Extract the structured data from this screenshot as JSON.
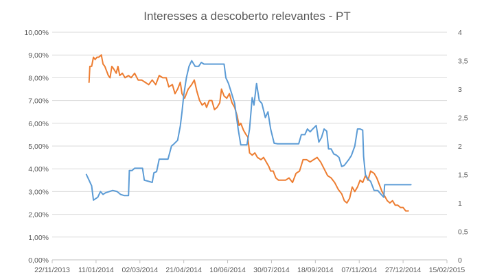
{
  "chart_data": {
    "type": "line",
    "title": "Interesses a descoberto relevantes - PT",
    "grid": true,
    "legend": "none",
    "x_axis": {
      "type": "date",
      "range": [
        "2013-11-22",
        "2015-02-15"
      ],
      "tick_labels": [
        "22/11/2013",
        "11/01/2014",
        "02/03/2014",
        "21/04/2014",
        "10/06/2014",
        "30/07/2014",
        "18/09/2014",
        "07/11/2014",
        "27/12/2014",
        "15/02/2015"
      ]
    },
    "y_axis_left": {
      "range": [
        0,
        10
      ],
      "tick_labels": [
        "0,00%",
        "1,00%",
        "2,00%",
        "3,00%",
        "4,00%",
        "5,00%",
        "6,00%",
        "7,00%",
        "8,00%",
        "9,00%",
        "10,00%"
      ]
    },
    "y_axis_right": {
      "range": [
        0,
        4
      ],
      "tick_labels": [
        "0",
        "0,5",
        "1",
        "1,5",
        "2",
        "2,5",
        "3",
        "3,5",
        "4"
      ]
    },
    "series": [
      {
        "axis": "left",
        "color": "#ed7d31",
        "points": [
          [
            "2014-01-03",
            7.8
          ],
          [
            "2014-01-04",
            8.5
          ],
          [
            "2014-01-06",
            8.5
          ],
          [
            "2014-01-08",
            8.9
          ],
          [
            "2014-01-10",
            8.8
          ],
          [
            "2014-01-12",
            8.9
          ],
          [
            "2014-01-14",
            8.9
          ],
          [
            "2014-01-17",
            9.0
          ],
          [
            "2014-01-19",
            8.6
          ],
          [
            "2014-01-21",
            8.5
          ],
          [
            "2014-01-23",
            8.3
          ],
          [
            "2014-01-25",
            8.1
          ],
          [
            "2014-01-27",
            8.0
          ],
          [
            "2014-01-29",
            8.5
          ],
          [
            "2014-01-31",
            8.4
          ],
          [
            "2014-02-03",
            8.2
          ],
          [
            "2014-02-05",
            8.5
          ],
          [
            "2014-02-07",
            8.1
          ],
          [
            "2014-02-10",
            8.2
          ],
          [
            "2014-02-13",
            8.0
          ],
          [
            "2014-02-17",
            8.1
          ],
          [
            "2014-02-20",
            8.0
          ],
          [
            "2014-02-24",
            8.2
          ],
          [
            "2014-02-28",
            7.9
          ],
          [
            "2014-03-04",
            7.9
          ],
          [
            "2014-03-08",
            7.8
          ],
          [
            "2014-03-12",
            7.7
          ],
          [
            "2014-03-16",
            7.9
          ],
          [
            "2014-03-20",
            7.7
          ],
          [
            "2014-03-24",
            8.1
          ],
          [
            "2014-03-28",
            8.0
          ],
          [
            "2014-04-01",
            8.0
          ],
          [
            "2014-04-04",
            7.6
          ],
          [
            "2014-04-08",
            7.7
          ],
          [
            "2014-04-11",
            7.3
          ],
          [
            "2014-04-14",
            7.5
          ],
          [
            "2014-04-17",
            7.8
          ],
          [
            "2014-04-19",
            7.3
          ],
          [
            "2014-04-22",
            7.1
          ],
          [
            "2014-04-26",
            7.5
          ],
          [
            "2014-04-30",
            7.7
          ],
          [
            "2014-05-03",
            7.9
          ],
          [
            "2014-05-06",
            7.4
          ],
          [
            "2014-05-09",
            7.0
          ],
          [
            "2014-05-12",
            6.8
          ],
          [
            "2014-05-15",
            6.9
          ],
          [
            "2014-05-17",
            6.7
          ],
          [
            "2014-05-20",
            7.0
          ],
          [
            "2014-05-23",
            7.0
          ],
          [
            "2014-05-26",
            6.6
          ],
          [
            "2014-05-29",
            6.7
          ],
          [
            "2014-06-01",
            6.9
          ],
          [
            "2014-06-03",
            7.5
          ],
          [
            "2014-06-06",
            7.2
          ],
          [
            "2014-06-09",
            7.1
          ],
          [
            "2014-06-12",
            7.3
          ],
          [
            "2014-06-15",
            6.9
          ],
          [
            "2014-06-18",
            6.7
          ],
          [
            "2014-06-21",
            6.3
          ],
          [
            "2014-06-23",
            5.9
          ],
          [
            "2014-06-25",
            6.0
          ],
          [
            "2014-06-28",
            5.7
          ],
          [
            "2014-07-01",
            5.5
          ],
          [
            "2014-07-03",
            5.4
          ],
          [
            "2014-07-05",
            4.7
          ],
          [
            "2014-07-08",
            4.6
          ],
          [
            "2014-07-11",
            4.7
          ],
          [
            "2014-07-14",
            4.5
          ],
          [
            "2014-07-18",
            4.4
          ],
          [
            "2014-07-21",
            4.5
          ],
          [
            "2014-07-24",
            4.3
          ],
          [
            "2014-07-27",
            4.1
          ],
          [
            "2014-07-29",
            3.9
          ],
          [
            "2014-08-01",
            3.9
          ],
          [
            "2014-08-04",
            3.6
          ],
          [
            "2014-08-07",
            3.5
          ],
          [
            "2014-08-11",
            3.5
          ],
          [
            "2014-08-15",
            3.5
          ],
          [
            "2014-08-19",
            3.6
          ],
          [
            "2014-08-23",
            3.4
          ],
          [
            "2014-08-27",
            3.8
          ],
          [
            "2014-08-31",
            3.9
          ],
          [
            "2014-09-04",
            4.4
          ],
          [
            "2014-09-08",
            4.4
          ],
          [
            "2014-09-12",
            4.3
          ],
          [
            "2014-09-16",
            4.4
          ],
          [
            "2014-09-20",
            4.5
          ],
          [
            "2014-09-24",
            4.3
          ],
          [
            "2014-09-28",
            4.0
          ],
          [
            "2014-10-02",
            3.7
          ],
          [
            "2014-10-06",
            3.6
          ],
          [
            "2014-10-10",
            3.4
          ],
          [
            "2014-10-14",
            3.1
          ],
          [
            "2014-10-18",
            2.9
          ],
          [
            "2014-10-21",
            2.6
          ],
          [
            "2014-10-24",
            2.5
          ],
          [
            "2014-10-27",
            2.7
          ],
          [
            "2014-10-30",
            3.2
          ],
          [
            "2014-11-02",
            3.0
          ],
          [
            "2014-11-05",
            3.2
          ],
          [
            "2014-11-08",
            3.5
          ],
          [
            "2014-11-11",
            3.4
          ],
          [
            "2014-11-14",
            3.7
          ],
          [
            "2014-11-17",
            3.5
          ],
          [
            "2014-11-20",
            3.9
          ],
          [
            "2014-11-24",
            3.8
          ],
          [
            "2014-11-27",
            3.6
          ],
          [
            "2014-11-30",
            3.3
          ],
          [
            "2014-12-03",
            3.0
          ],
          [
            "2014-12-06",
            2.8
          ],
          [
            "2014-12-09",
            2.6
          ],
          [
            "2014-12-12",
            2.5
          ],
          [
            "2014-12-15",
            2.6
          ],
          [
            "2014-12-18",
            2.4
          ],
          [
            "2014-12-21",
            2.4
          ],
          [
            "2014-12-24",
            2.3
          ],
          [
            "2014-12-27",
            2.3
          ],
          [
            "2014-12-30",
            2.15
          ],
          [
            "2015-01-02",
            2.15
          ]
        ]
      },
      {
        "axis": "right",
        "color": "#5b9bd5",
        "points": [
          [
            "2013-12-31",
            1.5
          ],
          [
            "2014-01-03",
            1.4
          ],
          [
            "2014-01-06",
            1.3
          ],
          [
            "2014-01-08",
            1.05
          ],
          [
            "2014-01-10",
            1.07
          ],
          [
            "2014-01-13",
            1.1
          ],
          [
            "2014-01-16",
            1.2
          ],
          [
            "2014-01-19",
            1.15
          ],
          [
            "2014-01-22",
            1.18
          ],
          [
            "2014-01-26",
            1.2
          ],
          [
            "2014-01-30",
            1.22
          ],
          [
            "2014-02-04",
            1.2
          ],
          [
            "2014-02-08",
            1.15
          ],
          [
            "2014-02-12",
            1.13
          ],
          [
            "2014-02-17",
            1.13
          ],
          [
            "2014-02-18",
            1.57
          ],
          [
            "2014-02-21",
            1.57
          ],
          [
            "2014-02-24",
            1.61
          ],
          [
            "2014-03-01",
            1.61
          ],
          [
            "2014-03-05",
            1.61
          ],
          [
            "2014-03-07",
            1.4
          ],
          [
            "2014-03-12",
            1.38
          ],
          [
            "2014-03-16",
            1.36
          ],
          [
            "2014-03-18",
            1.53
          ],
          [
            "2014-03-21",
            1.55
          ],
          [
            "2014-03-24",
            1.77
          ],
          [
            "2014-03-28",
            1.77
          ],
          [
            "2014-04-03",
            1.77
          ],
          [
            "2014-04-07",
            2.0
          ],
          [
            "2014-04-10",
            2.04
          ],
          [
            "2014-04-14",
            2.1
          ],
          [
            "2014-04-17",
            2.35
          ],
          [
            "2014-04-19",
            2.6
          ],
          [
            "2014-04-21",
            2.9
          ],
          [
            "2014-04-24",
            3.2
          ],
          [
            "2014-04-27",
            3.4
          ],
          [
            "2014-04-30",
            3.5
          ],
          [
            "2014-05-04",
            3.4
          ],
          [
            "2014-05-08",
            3.4
          ],
          [
            "2014-05-11",
            3.47
          ],
          [
            "2014-05-14",
            3.44
          ],
          [
            "2014-05-18",
            3.44
          ],
          [
            "2014-05-22",
            3.44
          ],
          [
            "2014-05-27",
            3.44
          ],
          [
            "2014-06-01",
            3.44
          ],
          [
            "2014-06-06",
            3.44
          ],
          [
            "2014-06-08",
            3.2
          ],
          [
            "2014-06-11",
            3.1
          ],
          [
            "2014-06-14",
            2.95
          ],
          [
            "2014-06-18",
            2.75
          ],
          [
            "2014-06-22",
            2.3
          ],
          [
            "2014-06-25",
            2.02
          ],
          [
            "2014-06-29",
            2.02
          ],
          [
            "2014-07-02",
            2.02
          ],
          [
            "2014-07-05",
            2.3
          ],
          [
            "2014-07-08",
            2.85
          ],
          [
            "2014-07-10",
            2.72
          ],
          [
            "2014-07-13",
            3.1
          ],
          [
            "2014-07-16",
            2.8
          ],
          [
            "2014-07-19",
            2.75
          ],
          [
            "2014-07-23",
            2.5
          ],
          [
            "2014-07-26",
            2.6
          ],
          [
            "2014-07-29",
            2.3
          ],
          [
            "2014-08-02",
            2.05
          ],
          [
            "2014-08-06",
            2.04
          ],
          [
            "2014-08-12",
            2.04
          ],
          [
            "2014-08-18",
            2.04
          ],
          [
            "2014-08-24",
            2.04
          ],
          [
            "2014-08-30",
            2.04
          ],
          [
            "2014-09-02",
            2.2
          ],
          [
            "2014-09-06",
            2.2
          ],
          [
            "2014-09-09",
            2.3
          ],
          [
            "2014-09-12",
            2.25
          ],
          [
            "2014-09-15",
            2.3
          ],
          [
            "2014-09-19",
            2.36
          ],
          [
            "2014-09-22",
            2.07
          ],
          [
            "2014-09-25",
            2.15
          ],
          [
            "2014-09-28",
            2.3
          ],
          [
            "2014-10-01",
            2.26
          ],
          [
            "2014-10-03",
            1.95
          ],
          [
            "2014-10-06",
            1.95
          ],
          [
            "2014-10-09",
            1.86
          ],
          [
            "2014-10-12",
            1.84
          ],
          [
            "2014-10-15",
            1.8
          ],
          [
            "2014-10-18",
            1.64
          ],
          [
            "2014-10-21",
            1.66
          ],
          [
            "2014-10-26",
            1.76
          ],
          [
            "2014-10-29",
            1.83
          ],
          [
            "2014-11-02",
            2.0
          ],
          [
            "2014-11-05",
            2.3
          ],
          [
            "2014-11-08",
            2.3
          ],
          [
            "2014-11-11",
            2.28
          ],
          [
            "2014-11-12",
            1.82
          ],
          [
            "2014-11-14",
            1.5
          ],
          [
            "2014-11-17",
            1.42
          ],
          [
            "2014-11-20",
            1.38
          ],
          [
            "2014-11-24",
            1.22
          ],
          [
            "2014-11-28",
            1.22
          ],
          [
            "2014-12-02",
            1.15
          ],
          [
            "2014-12-05",
            1.1
          ],
          [
            "2014-12-06",
            1.32
          ],
          [
            "2014-12-12",
            1.32
          ],
          [
            "2014-12-20",
            1.32
          ],
          [
            "2014-12-28",
            1.32
          ],
          [
            "2015-01-05",
            1.32
          ]
        ]
      }
    ]
  }
}
